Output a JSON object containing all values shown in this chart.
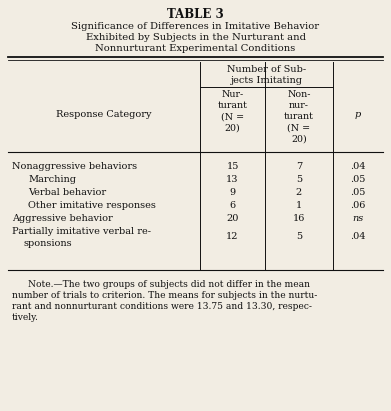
{
  "table_number": "TABLE 3",
  "title_line1": "Significance of Differences in Imitative Behavior",
  "title_line2": "Exhibited by Subjects in the Nurturant and",
  "title_line3": "Nonnurturant Experimental Conditions",
  "col_header_span": "Number of Sub-\njects Imitating",
  "col_header_cat": "Response Category",
  "col_header_nur": "Nur-\nturant\n(N =\n20)",
  "col_header_non": "Non-\nnur-\nturant\n(N =\n20)",
  "col_header_p": "p",
  "rows": [
    [
      "Nonaggressive behaviors",
      false,
      "15",
      "7",
      ".04",
      false
    ],
    [
      "Marching",
      true,
      "13",
      "5",
      ".05",
      false
    ],
    [
      "Verbal behavior",
      true,
      "9",
      "2",
      ".05",
      false
    ],
    [
      "Other imitative responses",
      true,
      "6",
      "1",
      ".06",
      false
    ],
    [
      "Aggressive behavior",
      false,
      "20",
      "16",
      "ns",
      true
    ],
    [
      "Partially imitative verbal re-\nsponsions",
      false,
      "12",
      "5",
      ".04",
      false
    ]
  ],
  "note_line1": "Note.—The two groups of subjects did not differ in the mean",
  "note_line2": "number of trials to criterion. The means for subjects in the nurtu-",
  "note_line3": "rant and nonnurturant conditions were 13.75 and 13.30, respec-",
  "note_line4": "tively.",
  "bg_color": "#f2ede3",
  "text_color": "#111111",
  "figw": 3.91,
  "figh": 4.11,
  "dpi": 100
}
